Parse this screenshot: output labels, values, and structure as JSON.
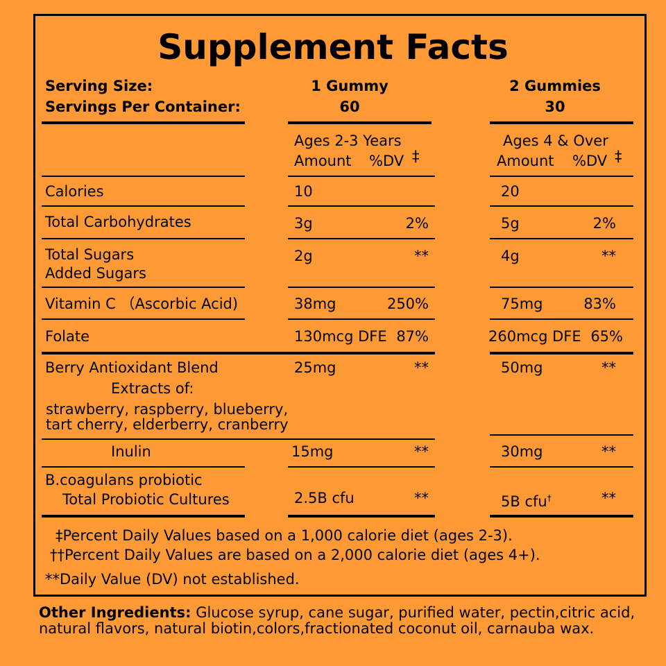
{
  "title": "Supplement Facts",
  "serving": {
    "size_label": "Serving Size:",
    "per_container_label": "Servings Per Container:",
    "columns": [
      {
        "size": "1 Gummy",
        "servings": "60"
      },
      {
        "size": "2 Gummies",
        "servings": "30"
      }
    ]
  },
  "columns": [
    {
      "age": "Ages 2-3 Years",
      "amount": "Amount",
      "dv": "%DV",
      "mark": "‡"
    },
    {
      "age": "Ages 4 & Over",
      "amount": "Amount",
      "dv": "%DV",
      "mark": "‡"
    }
  ],
  "rows": [
    {
      "name": [
        "Calories"
      ],
      "col1": [
        "10",
        ""
      ],
      "col2": [
        "20",
        ""
      ]
    },
    {
      "name": [
        "Total Carbohydrates"
      ],
      "col1": [
        "3g",
        "2%"
      ],
      "col2": [
        "5g",
        "2%"
      ]
    },
    {
      "name": [
        "Total Sugars",
        "Added Sugars"
      ],
      "col1": [
        "2g",
        "**"
      ],
      "col2": [
        "4g",
        "**"
      ]
    },
    {
      "name": [
        "Vitamin C （Ascorbic Acid)"
      ],
      "col1": [
        "38mg",
        "250%"
      ],
      "col2": [
        "75mg",
        "83%"
      ]
    },
    {
      "name": [
        "Folate"
      ],
      "col1": [
        "130mcg DFE",
        "87%"
      ],
      "col2": [
        "260mcg DFE",
        "65%"
      ]
    },
    {
      "name": [
        "Berry Antioxidant Blend",
        "Extracts of:",
        "strawberry, raspberry, blueberry,",
        "tart cherry, elderberry, cranberry"
      ],
      "col1": [
        "25mg",
        "**"
      ],
      "col2": [
        "50mg",
        "**"
      ]
    },
    {
      "name": [
        "Inulin"
      ],
      "col1": [
        "15mg",
        "**"
      ],
      "col2": [
        "30mg",
        "**"
      ]
    },
    {
      "name": [
        "B.coagulans probiotic",
        "Total Probiotic Cultures"
      ],
      "col1": [
        "2.5B cfu",
        "**"
      ],
      "col2": [
        "5B cfu",
        "**"
      ],
      "col2_mark": "†"
    }
  ],
  "footnotes": [
    "‡Percent Daily Values based on a 1,000 calorie diet (ages 2-3).",
    "††Percent Daily Values are based on a 2,000 calorie diet (ages 4+).",
    "**Daily Value (DV) not established."
  ],
  "other_ingredients": {
    "label": "Other Ingredients:",
    "text": "Glucose syrup, cane sugar,  purified water,  pectin,citric acid, natural flavors, natural biotin,colors,fractionated coconut oil, carnauba wax."
  }
}
